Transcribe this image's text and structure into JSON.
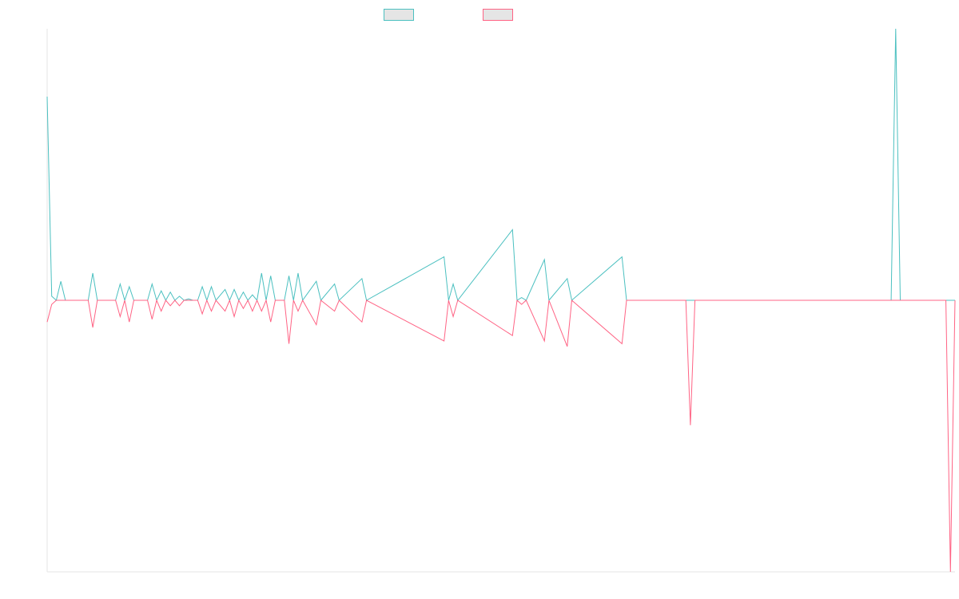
{
  "chart_data": {
    "type": "line",
    "title": "",
    "xlabel": "",
    "ylabel": "",
    "grid": false,
    "legend_placement": "top-center",
    "ylim": [
      -100,
      100
    ],
    "x_count": 200,
    "series": [
      {
        "name": "",
        "color": "#4bc0c0",
        "points": [
          [
            0,
            75
          ],
          [
            1,
            1.5
          ],
          [
            2,
            0
          ],
          [
            3,
            7
          ],
          [
            4,
            0
          ],
          [
            9,
            0
          ],
          [
            10,
            10
          ],
          [
            11,
            0
          ],
          [
            15,
            0
          ],
          [
            16,
            6
          ],
          [
            17,
            0
          ],
          [
            18,
            5
          ],
          [
            19,
            0
          ],
          [
            22,
            0
          ],
          [
            23,
            6
          ],
          [
            24,
            0
          ],
          [
            25,
            3.5
          ],
          [
            26,
            0
          ],
          [
            27,
            3
          ],
          [
            28,
            0
          ],
          [
            29,
            1.5
          ],
          [
            30,
            0
          ],
          [
            31,
            0.5
          ],
          [
            32,
            0
          ],
          [
            33,
            0
          ],
          [
            34,
            5
          ],
          [
            35,
            0
          ],
          [
            36,
            5
          ],
          [
            37,
            0
          ],
          [
            39,
            4
          ],
          [
            40,
            0
          ],
          [
            41,
            4
          ],
          [
            42,
            0
          ],
          [
            43,
            3
          ],
          [
            44,
            0
          ],
          [
            45,
            2
          ],
          [
            46,
            0
          ],
          [
            47,
            10
          ],
          [
            48,
            0
          ],
          [
            49,
            9
          ],
          [
            50,
            0
          ],
          [
            52,
            0
          ],
          [
            53,
            9
          ],
          [
            54,
            0
          ],
          [
            55,
            10
          ],
          [
            56,
            0
          ],
          [
            59,
            7
          ],
          [
            60,
            0
          ],
          [
            63,
            6
          ],
          [
            64,
            0
          ],
          [
            69,
            8
          ],
          [
            70,
            0
          ],
          [
            87,
            16
          ],
          [
            88,
            0
          ],
          [
            89,
            6
          ],
          [
            90,
            0
          ],
          [
            102,
            26
          ],
          [
            103,
            0
          ],
          [
            104,
            1
          ],
          [
            105,
            0
          ],
          [
            109,
            15
          ],
          [
            110,
            0
          ],
          [
            114,
            8
          ],
          [
            115,
            0
          ],
          [
            126,
            16
          ],
          [
            127,
            0
          ],
          [
            185,
            0
          ],
          [
            186,
            100
          ],
          [
            187,
            0
          ],
          [
            199,
            0
          ]
        ]
      },
      {
        "name": "",
        "color": "#ff6384",
        "points": [
          [
            0,
            -8
          ],
          [
            1,
            -1.5
          ],
          [
            2,
            0
          ],
          [
            3,
            0
          ],
          [
            4,
            0
          ],
          [
            9,
            0
          ],
          [
            10,
            -10
          ],
          [
            11,
            0
          ],
          [
            15,
            0
          ],
          [
            16,
            -6
          ],
          [
            17,
            0
          ],
          [
            18,
            -8
          ],
          [
            19,
            0
          ],
          [
            22,
            0
          ],
          [
            23,
            -7
          ],
          [
            24,
            0
          ],
          [
            25,
            -4
          ],
          [
            26,
            0
          ],
          [
            27,
            -2
          ],
          [
            28,
            0
          ],
          [
            29,
            -2
          ],
          [
            30,
            0
          ],
          [
            31,
            0
          ],
          [
            32,
            0
          ],
          [
            33,
            0
          ],
          [
            34,
            -5
          ],
          [
            35,
            0
          ],
          [
            36,
            -4
          ],
          [
            37,
            0
          ],
          [
            39,
            -4
          ],
          [
            40,
            0
          ],
          [
            41,
            -6
          ],
          [
            42,
            0
          ],
          [
            43,
            -3
          ],
          [
            44,
            0
          ],
          [
            45,
            -4
          ],
          [
            46,
            0
          ],
          [
            47,
            -4
          ],
          [
            48,
            0
          ],
          [
            49,
            -8
          ],
          [
            50,
            0
          ],
          [
            52,
            0
          ],
          [
            53,
            -16
          ],
          [
            54,
            0
          ],
          [
            55,
            -4
          ],
          [
            56,
            0
          ],
          [
            59,
            -9
          ],
          [
            60,
            0
          ],
          [
            63,
            -4
          ],
          [
            64,
            0
          ],
          [
            69,
            -8
          ],
          [
            70,
            0
          ],
          [
            87,
            -15
          ],
          [
            88,
            0
          ],
          [
            89,
            -6
          ],
          [
            90,
            0
          ],
          [
            102,
            -13
          ],
          [
            103,
            0
          ],
          [
            104,
            -1.5
          ],
          [
            105,
            0
          ],
          [
            109,
            -15
          ],
          [
            110,
            0
          ],
          [
            114,
            -17
          ],
          [
            115,
            0
          ],
          [
            126,
            -16
          ],
          [
            127,
            0
          ],
          [
            140,
            0
          ],
          [
            141,
            -46
          ],
          [
            142,
            0
          ],
          [
            197,
            0
          ],
          [
            198,
            -100
          ],
          [
            199,
            0
          ]
        ]
      }
    ]
  }
}
